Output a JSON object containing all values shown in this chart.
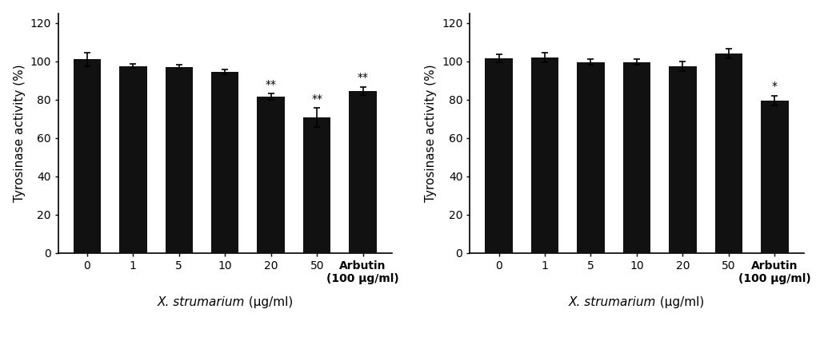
{
  "left": {
    "values": [
      101.0,
      97.5,
      97.0,
      94.5,
      81.5,
      70.5,
      84.5
    ],
    "errors": [
      3.5,
      1.0,
      1.0,
      1.2,
      1.5,
      5.0,
      2.0
    ],
    "labels": [
      "0",
      "1",
      "5",
      "10",
      "20",
      "50",
      "Arbutin\n(100 μg/ml)"
    ],
    "significance": [
      "",
      "",
      "",
      "",
      "**",
      "**",
      "**"
    ],
    "ylim": [
      0,
      125
    ],
    "yticks": [
      0,
      20,
      40,
      60,
      80,
      100,
      120
    ]
  },
  "right": {
    "values": [
      101.5,
      102.0,
      99.5,
      99.5,
      97.5,
      104.0,
      79.5
    ],
    "errors": [
      2.0,
      2.5,
      1.5,
      1.5,
      2.5,
      2.5,
      2.5
    ],
    "labels": [
      "0",
      "1",
      "5",
      "10",
      "20",
      "50",
      "Arbutin\n(100 μg/ml)"
    ],
    "significance": [
      "",
      "",
      "",
      "",
      "",
      "",
      "*"
    ],
    "ylim": [
      0,
      125
    ],
    "yticks": [
      0,
      20,
      40,
      60,
      80,
      100,
      120
    ]
  },
  "bar_color": "#111111",
  "bar_width": 0.6,
  "bg_color": "#ffffff",
  "ylabel": "Tyrosinase activity (%)",
  "xlabel_italic": "X. strumarium",
  "xlabel_normal": " (μg/ml)",
  "sig_fontsize": 10,
  "tick_fontsize": 10,
  "ylabel_fontsize": 11,
  "xlabel_fontsize": 11
}
